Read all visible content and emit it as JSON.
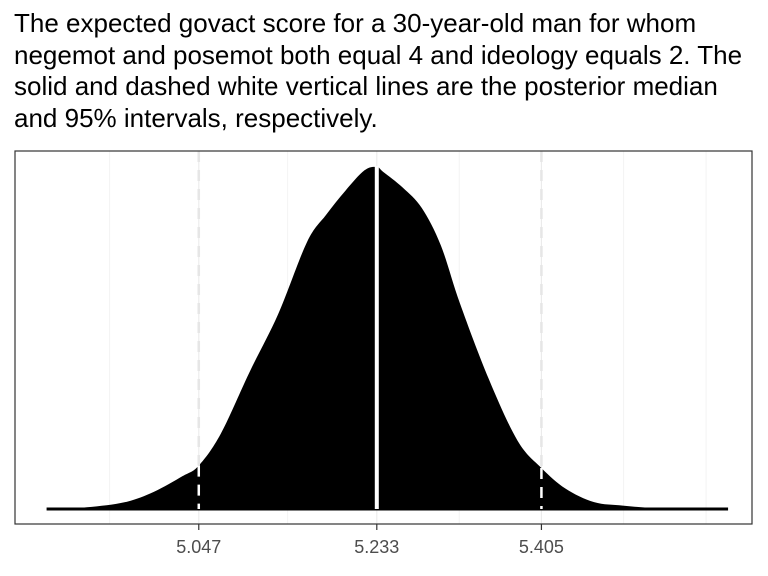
{
  "chart_data": {
    "type": "area",
    "title": "The expected govact score for a 30-year-old man for whom negemot and posemot both equal 4 and ideology equals 2. The solid and dashed white vertical lines are the posterior median and 95% intervals, respectively.",
    "xlabel": "",
    "ylabel": "",
    "xlim": [
      4.855,
      5.625
    ],
    "ylim": [
      0,
      1
    ],
    "x_ticks": [
      5.047,
      5.233,
      5.405
    ],
    "x_tick_labels": [
      "5.047",
      "5.233",
      "5.405"
    ],
    "y_ticks_shown": false,
    "grid": true,
    "legend": "none",
    "fill_color": "#000000",
    "median": 5.233,
    "interval_95": [
      5.047,
      5.405
    ],
    "density": {
      "x": [
        4.888,
        4.93,
        4.97,
        5.0,
        5.03,
        5.047,
        5.07,
        5.1,
        5.13,
        5.16,
        5.18,
        5.2,
        5.22,
        5.233,
        5.24,
        5.26,
        5.28,
        5.3,
        5.32,
        5.35,
        5.38,
        5.405,
        5.43,
        5.46,
        5.49,
        5.52,
        5.55,
        5.58,
        5.6
      ],
      "y": [
        0.0,
        0.005,
        0.02,
        0.05,
        0.096,
        0.127,
        0.22,
        0.4,
        0.57,
        0.78,
        0.86,
        0.93,
        0.99,
        1.0,
        0.985,
        0.94,
        0.88,
        0.77,
        0.6,
        0.38,
        0.2,
        0.12,
        0.06,
        0.02,
        0.01,
        0.003,
        0.0,
        0.0,
        0.0
      ]
    }
  },
  "colors": {
    "panel_border": "#333333",
    "grid_line": "#ebebeb",
    "tick_text": "#4d4d4d",
    "median_line": "#ffffff",
    "interval_line": "#ffffff",
    "interval_line_outside": "#e6e6e6"
  }
}
